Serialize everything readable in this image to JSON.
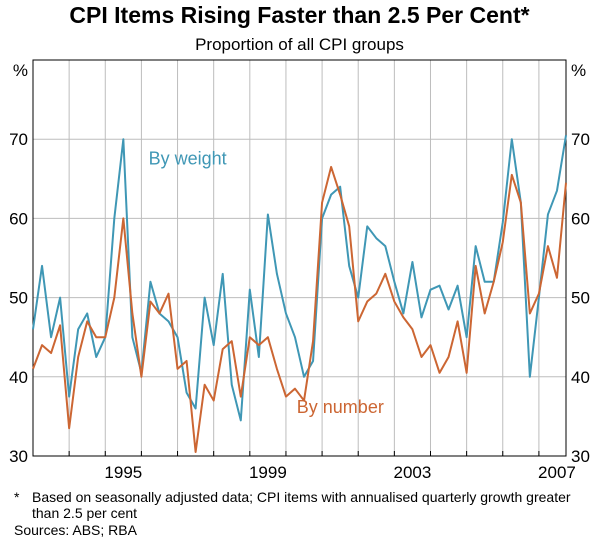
{
  "chart_data": {
    "type": "line",
    "title": "CPI Items Rising Faster than 2.5 Per Cent*",
    "subtitle": "Proportion of all CPI groups",
    "ylabel_left": "%",
    "ylabel_right": "%",
    "ylim": [
      30,
      80
    ],
    "yticks": [
      30,
      40,
      50,
      60,
      70
    ],
    "xlim": [
      1993.0,
      2007.75
    ],
    "xtick_years": [
      1995,
      1999,
      2003,
      2007
    ],
    "xtick_labels": [
      "1995",
      "1999",
      "2003",
      "2007"
    ],
    "grid": true,
    "series": [
      {
        "name": "By weight",
        "color": "#3f97b5",
        "start_year": 1993.0,
        "step": 0.25,
        "values": [
          46,
          54,
          45,
          50,
          37.5,
          46,
          48,
          42.5,
          45,
          60,
          70,
          45,
          40.5,
          52,
          48,
          47,
          45,
          38,
          36,
          50,
          44,
          53,
          39,
          34.5,
          51,
          42.5,
          60.5,
          53,
          48,
          45,
          40,
          42,
          60,
          63,
          64,
          54,
          50,
          59,
          57.5,
          56.5,
          52,
          48,
          54.5,
          47.5,
          51,
          51.5,
          48.5,
          51.5,
          45,
          56.5,
          52,
          52,
          59.5,
          70,
          62,
          40,
          50,
          60.5,
          63.5,
          70.5
        ]
      },
      {
        "name": "By number",
        "color": "#cc6633",
        "start_year": 1993.0,
        "step": 0.25,
        "values": [
          41,
          44,
          43,
          46.5,
          33.5,
          42.5,
          47,
          45,
          45,
          50,
          60,
          48,
          40,
          49.5,
          48,
          50.5,
          41,
          42,
          30.5,
          39,
          37,
          43.5,
          44.5,
          37.5,
          45,
          44,
          45,
          41,
          37.5,
          38.5,
          37,
          44.5,
          62,
          66.5,
          63,
          59,
          47,
          49.5,
          50.5,
          53,
          49.5,
          47.5,
          46,
          42.5,
          44,
          40.5,
          42.5,
          47,
          40.5,
          54,
          48,
          52,
          57,
          65.5,
          62,
          48,
          50.5,
          56.5,
          52.5,
          64.5
        ]
      }
    ],
    "annotations": [
      {
        "text": "By weight",
        "x": 1996.2,
        "y": 66.8,
        "color": "#3f97b5"
      },
      {
        "text": "By number",
        "x": 2000.3,
        "y": 35.4,
        "color": "#cc6633"
      }
    ]
  },
  "footnotes": {
    "star": "*",
    "note": "Based on seasonally adjusted data; CPI items with annualised quarterly growth greater than 2.5 per cent",
    "sources": "Sources: ABS; RBA"
  }
}
